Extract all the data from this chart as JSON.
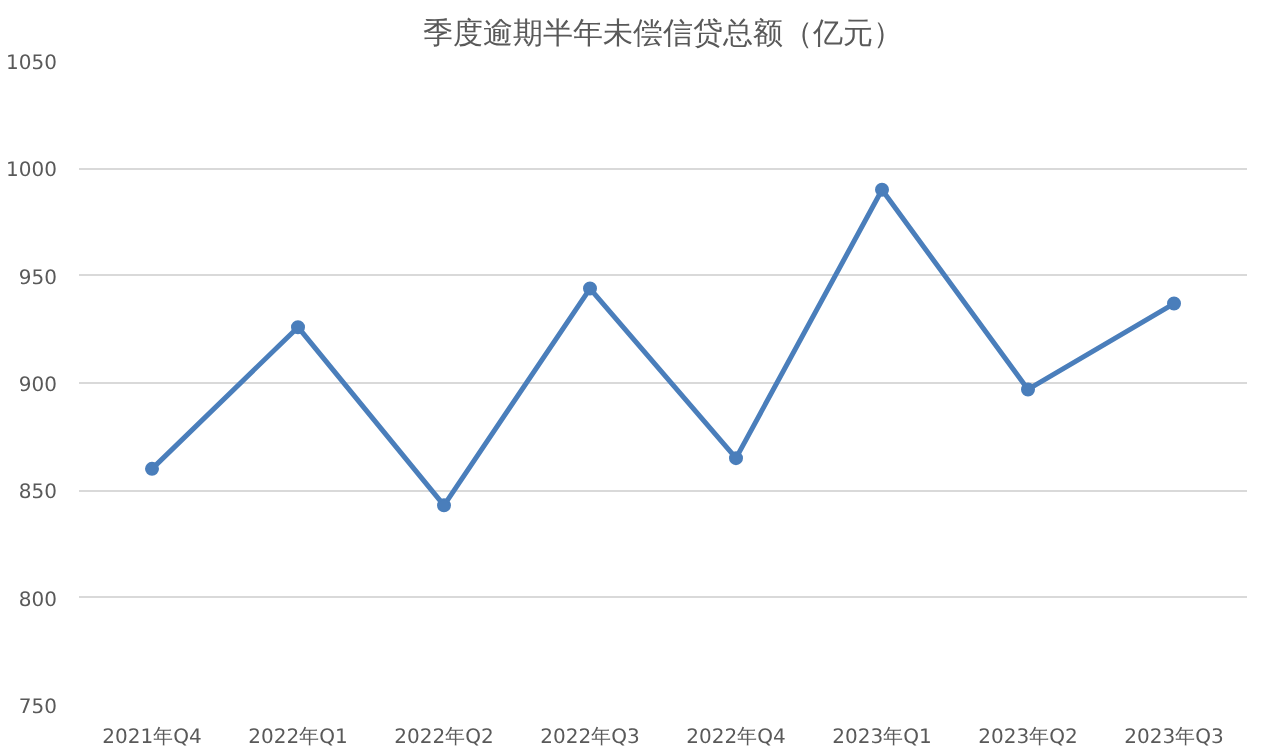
{
  "chart_data": {
    "type": "line",
    "title": "季度逾期半年未偿信贷总额（亿元）",
    "categories": [
      "2021年Q4",
      "2022年Q1",
      "2022年Q2",
      "2022年Q3",
      "2022年Q4",
      "2023年Q1",
      "2023年Q2",
      "2023年Q3"
    ],
    "series": [
      {
        "color": "#4a7ebb",
        "values": [
          860,
          926,
          843,
          944,
          865,
          990,
          897,
          937
        ]
      }
    ],
    "ylim": [
      750,
      1050
    ],
    "yticks": [
      750,
      800,
      850,
      900,
      950,
      1000,
      1050
    ],
    "grid": "y",
    "marker": "circle",
    "line_style": "solid"
  }
}
